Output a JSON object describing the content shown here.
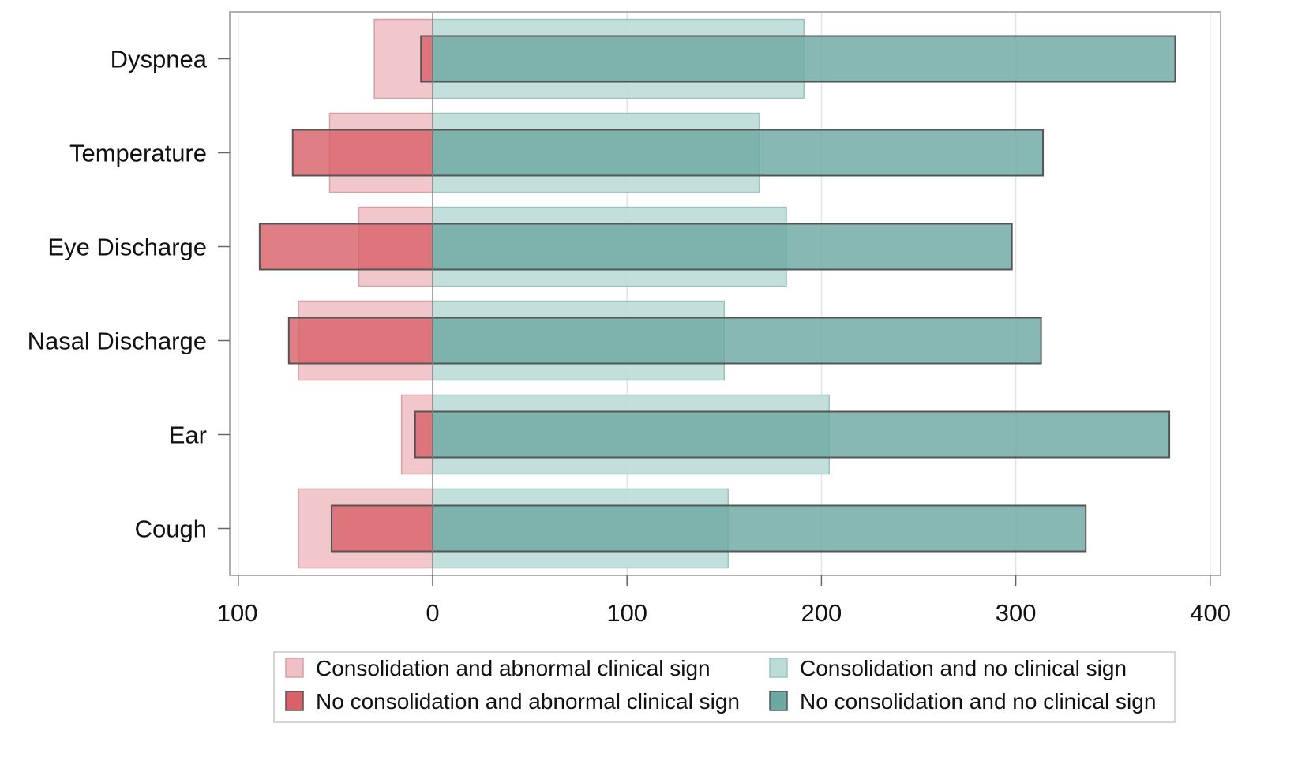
{
  "chart_data": {
    "type": "bar",
    "orientation": "horizontal",
    "categories": [
      "Dyspnea",
      "Temperature",
      "Eye Discharge",
      "Nasal Discharge",
      "Ear",
      "Cough"
    ],
    "series": [
      {
        "name": "Consolidation and abnormal clinical sign",
        "side": "left",
        "layer": "outer",
        "color": "#efc1c6",
        "values": [
          30,
          53,
          38,
          69,
          16,
          69
        ]
      },
      {
        "name": "No consolidation and abnormal clinical sign",
        "side": "left",
        "layer": "inner",
        "color": "#d9626a",
        "values": [
          6,
          72,
          89,
          74,
          9,
          52
        ]
      },
      {
        "name": "Consolidation and no clinical sign",
        "side": "right",
        "layer": "outer",
        "color": "#bcdcd8",
        "values": [
          191,
          168,
          182,
          150,
          204,
          152
        ]
      },
      {
        "name": "No consolidation and no clinical sign",
        "side": "right",
        "layer": "inner",
        "color": "#6ea8a2",
        "values": [
          382,
          314,
          298,
          313,
          379,
          336
        ]
      }
    ],
    "xlim": [
      -100,
      400
    ],
    "xticks": [
      {
        "value": -100,
        "label": "100"
      },
      {
        "value": 0,
        "label": "0"
      },
      {
        "value": 100,
        "label": "100"
      },
      {
        "value": 200,
        "label": "200"
      },
      {
        "value": 300,
        "label": "300"
      },
      {
        "value": 400,
        "label": "400"
      }
    ],
    "grid": true,
    "legend_position": "bottom"
  }
}
